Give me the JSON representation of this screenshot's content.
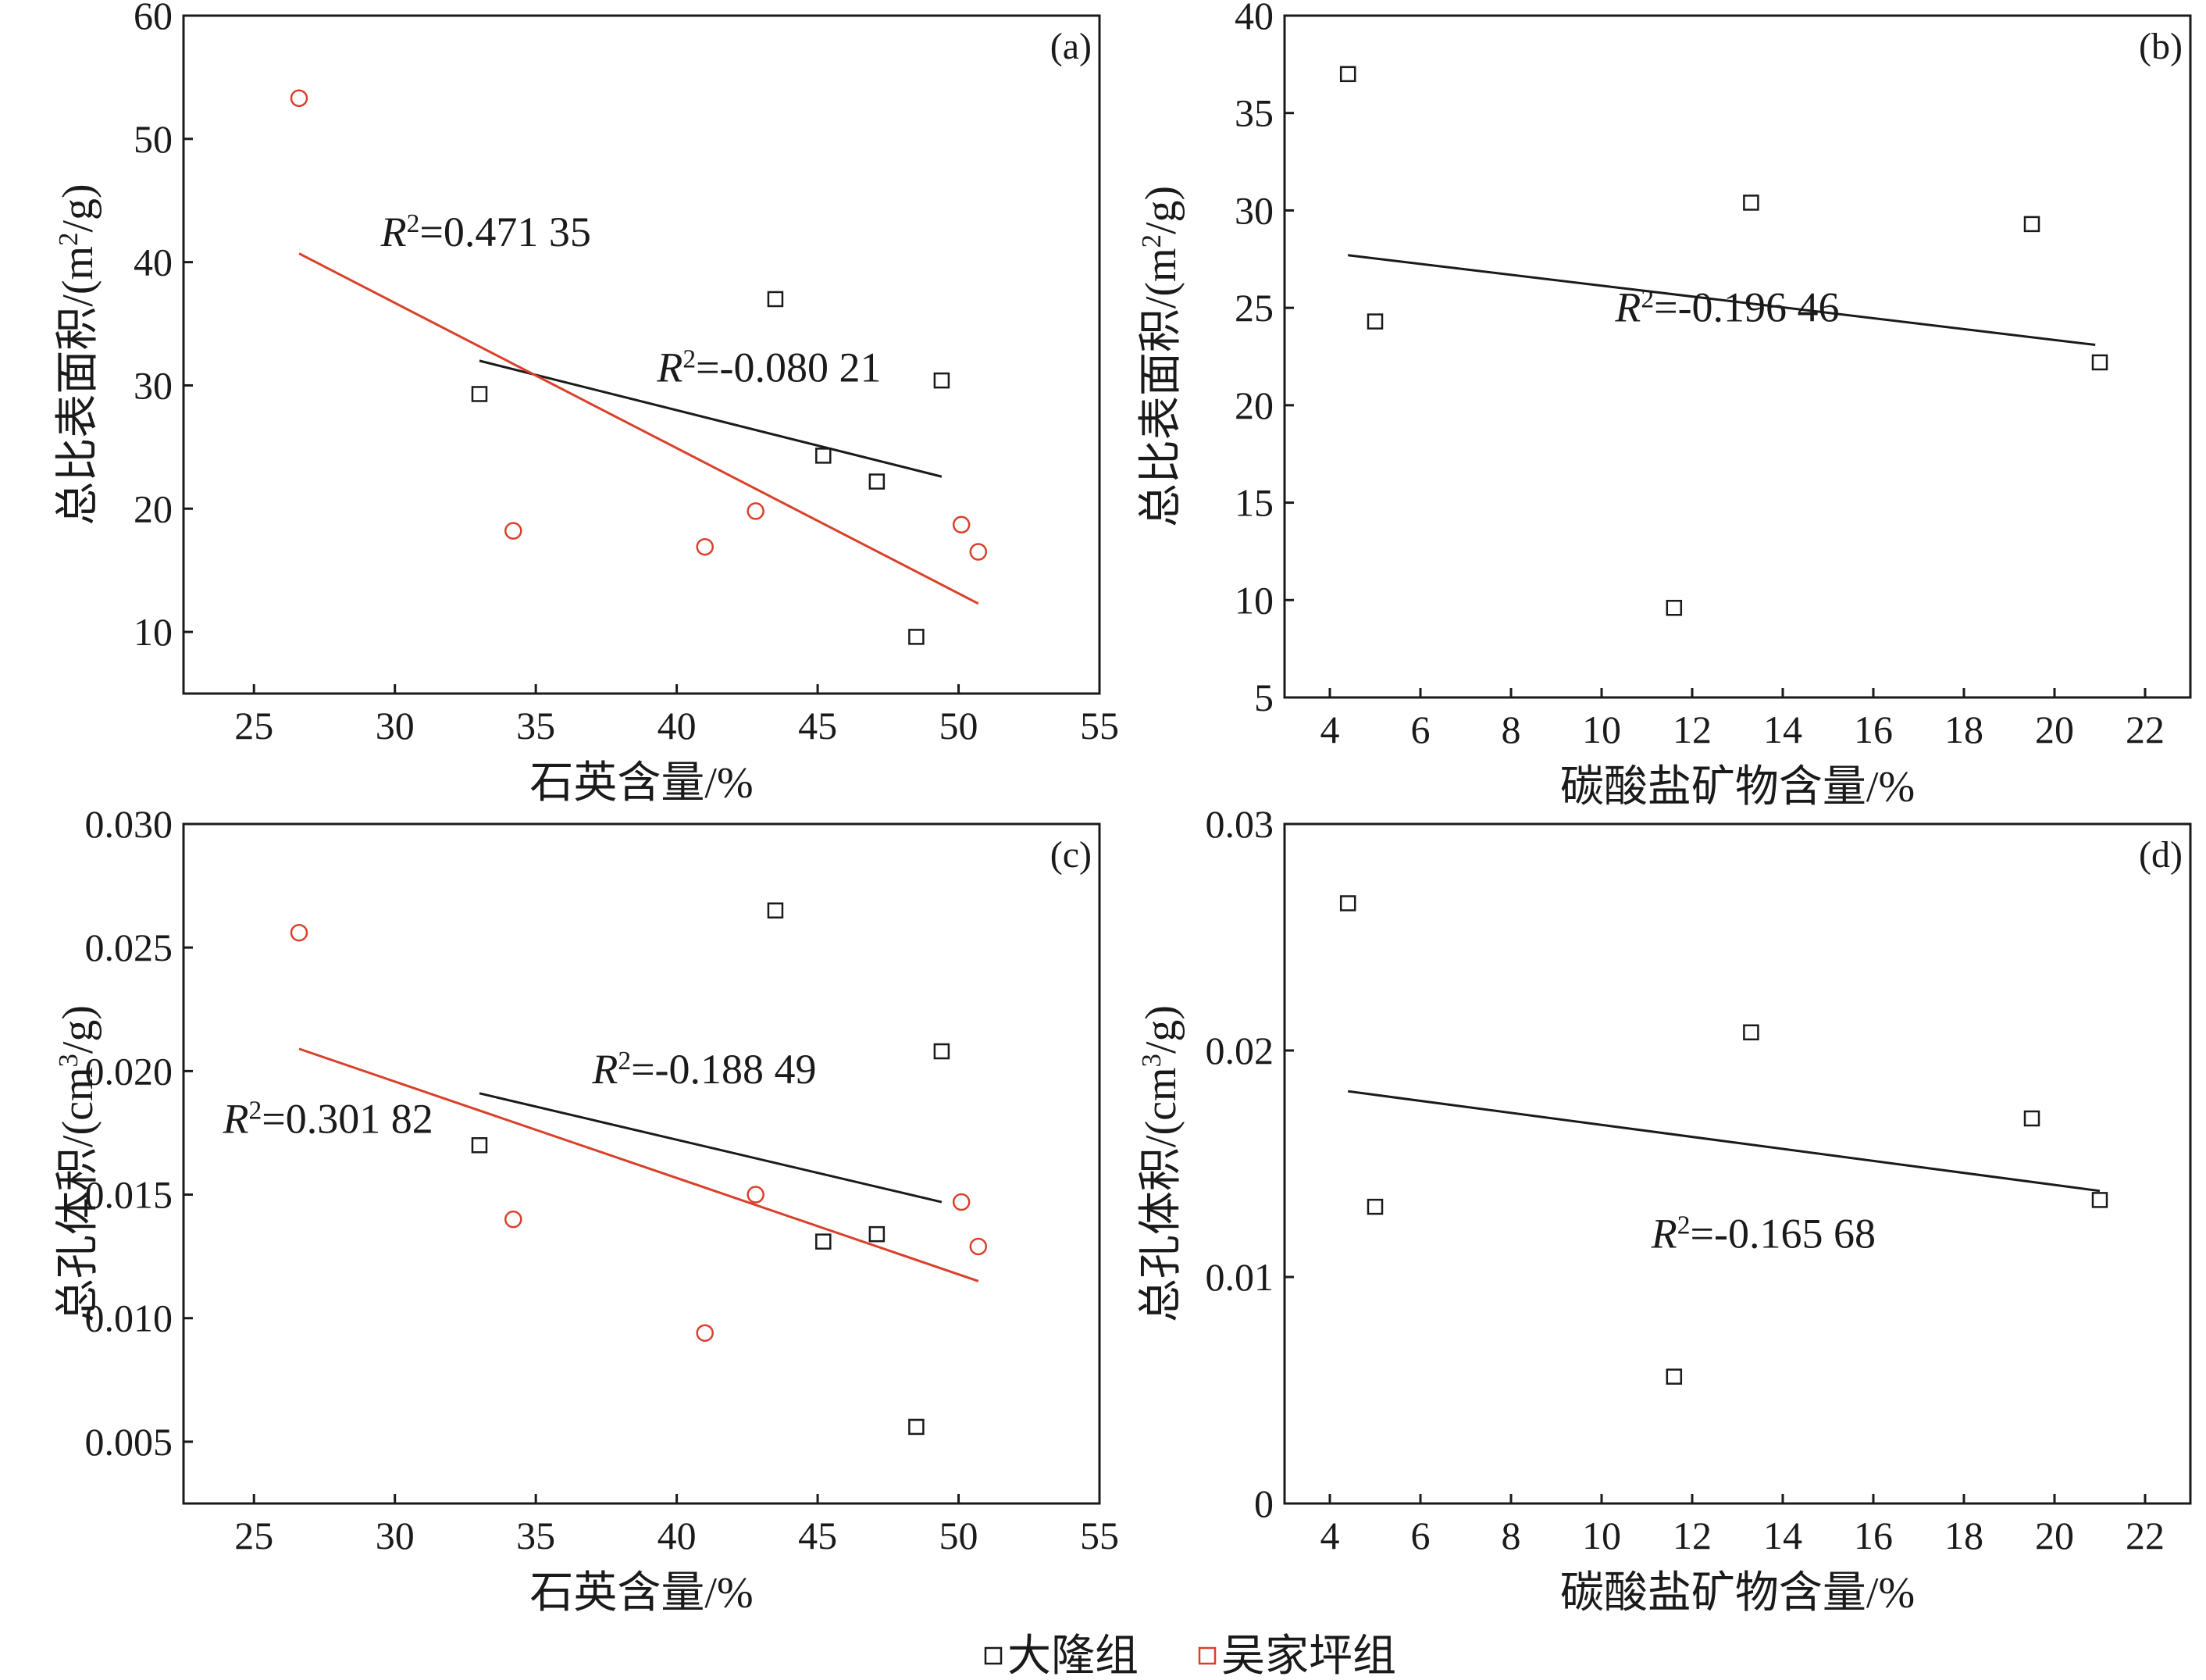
{
  "colors": {
    "dalong": "#1a1a1a",
    "wujiaping": "#d9402a",
    "frame": "#1a1a1a"
  },
  "legend": {
    "items": [
      {
        "series": "dalong",
        "symbol": "square",
        "label": "大隆组"
      },
      {
        "series": "wujiaping",
        "symbol": "circle",
        "label": "吴家坪组"
      }
    ]
  },
  "chart_data": [
    {
      "id": "a",
      "panel_label": "(a)",
      "type": "scatter",
      "xlabel": "石英含量/%",
      "ylabel": "总比表面积/(m²/g)",
      "xlim": [
        22.5,
        55
      ],
      "ylim": [
        5,
        60
      ],
      "xticks": [
        "25",
        "30",
        "35",
        "40",
        "45",
        "50",
        "55"
      ],
      "yticks": [
        "10",
        "20",
        "30",
        "40",
        "50",
        "60"
      ],
      "series": [
        {
          "name": "大隆组",
          "marker": "square",
          "points": [
            [
              33,
              29.3
            ],
            [
              43.5,
              37
            ],
            [
              45.2,
              24.3
            ],
            [
              47.1,
              22.2
            ],
            [
              48.5,
              9.6
            ],
            [
              49.4,
              30.4
            ]
          ],
          "fit": {
            "x": [
              33,
              49.4
            ],
            "y": [
              32.0,
              22.6
            ],
            "label": "R²=-0.080 21",
            "label_x": 39.3,
            "label_y": 30.3
          }
        },
        {
          "name": "吴家坪组",
          "marker": "circle",
          "points": [
            [
              26.6,
              53.3
            ],
            [
              34.2,
              18.2
            ],
            [
              41.0,
              16.9
            ],
            [
              42.8,
              19.8
            ],
            [
              50.1,
              18.7
            ],
            [
              50.7,
              16.5
            ]
          ],
          "fit": {
            "x": [
              26.6,
              50.7
            ],
            "y": [
              40.7,
              12.3
            ],
            "label": "R²=0.471 35",
            "label_x": 29.5,
            "label_y": 41.3
          }
        }
      ]
    },
    {
      "id": "b",
      "panel_label": "(b)",
      "type": "scatter",
      "xlabel": "碳酸盐矿物含量/%",
      "ylabel": "总比表面积/(m²/g)",
      "xlim": [
        3,
        23
      ],
      "ylim": [
        5,
        40
      ],
      "xticks": [
        "4",
        "6",
        "8",
        "10",
        "12",
        "14",
        "16",
        "18",
        "20",
        "22"
      ],
      "yticks": [
        "5",
        "10",
        "15",
        "20",
        "25",
        "30",
        "35",
        "40"
      ],
      "series": [
        {
          "name": "大隆组",
          "marker": "square",
          "points": [
            [
              4.4,
              37
            ],
            [
              5.0,
              24.3
            ],
            [
              11.6,
              9.6
            ],
            [
              13.3,
              30.4
            ],
            [
              19.5,
              29.3
            ],
            [
              21.0,
              22.2
            ]
          ],
          "fit": {
            "x": [
              4.4,
              20.9
            ],
            "y": [
              27.7,
              23.1
            ],
            "label": "R²=-0.196 46",
            "label_x": 10.3,
            "label_y": 24.3
          }
        }
      ]
    },
    {
      "id": "c",
      "panel_label": "(c)",
      "type": "scatter",
      "xlabel": "石英含量/%",
      "ylabel": "总孔体积/(cm³/g)",
      "xlim": [
        22.5,
        55
      ],
      "ylim": [
        0.0025,
        0.03
      ],
      "xticks": [
        "25",
        "30",
        "35",
        "40",
        "45",
        "50",
        "55"
      ],
      "yticks": [
        "0.005",
        "0.010",
        "0.015",
        "0.020",
        "0.025",
        "0.030"
      ],
      "series": [
        {
          "name": "大隆组",
          "marker": "square",
          "points": [
            [
              33,
              0.017
            ],
            [
              43.5,
              0.0265
            ],
            [
              45.2,
              0.0131
            ],
            [
              47.1,
              0.0134
            ],
            [
              48.5,
              0.0056
            ],
            [
              49.4,
              0.0208
            ]
          ],
          "fit": {
            "x": [
              33,
              49.4
            ],
            "y": [
              0.0191,
              0.0147
            ],
            "label": "R²=-0.188 49",
            "label_x": 37.0,
            "label_y": 0.0195
          }
        },
        {
          "name": "吴家坪组",
          "marker": "circle",
          "points": [
            [
              26.6,
              0.0256
            ],
            [
              34.2,
              0.014
            ],
            [
              41.0,
              0.0094
            ],
            [
              42.8,
              0.015
            ],
            [
              50.1,
              0.0147
            ],
            [
              50.7,
              0.0129
            ]
          ],
          "fit": {
            "x": [
              26.6,
              50.7
            ],
            "y": [
              0.0209,
              0.0115
            ],
            "label": "R²=0.301 82",
            "label_x": 23.9,
            "label_y": 0.0175
          }
        }
      ]
    },
    {
      "id": "d",
      "panel_label": "(d)",
      "type": "scatter",
      "xlabel": "碳酸盐矿物含量/%",
      "ylabel": "总孔体积/(cm³/g)",
      "xlim": [
        3,
        23
      ],
      "ylim": [
        0,
        0.03
      ],
      "xticks": [
        "4",
        "6",
        "8",
        "10",
        "12",
        "14",
        "16",
        "18",
        "20",
        "22"
      ],
      "yticks": [
        "0",
        "0.01",
        "0.02",
        "0.03"
      ],
      "series": [
        {
          "name": "大隆组",
          "marker": "square",
          "points": [
            [
              4.4,
              0.0265
            ],
            [
              5.0,
              0.0131
            ],
            [
              11.6,
              0.0056
            ],
            [
              13.3,
              0.0208
            ],
            [
              19.5,
              0.017
            ],
            [
              21.0,
              0.0134
            ]
          ],
          "fit": {
            "x": [
              4.4,
              21.0
            ],
            "y": [
              0.0182,
              0.0138
            ],
            "label": "R²=-0.165 68",
            "label_x": 11.1,
            "label_y": 0.0113
          }
        }
      ]
    }
  ]
}
